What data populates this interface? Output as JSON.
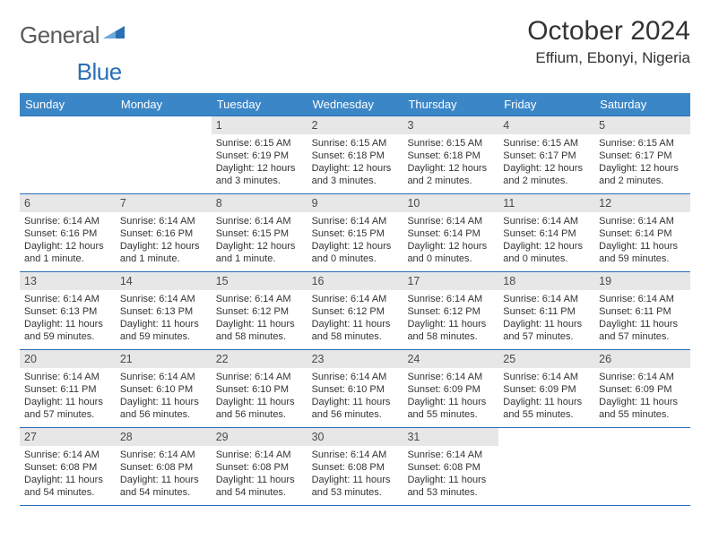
{
  "logo": {
    "part1": "General",
    "part2": "Blue"
  },
  "title": "October 2024",
  "location": "Effium, Ebonyi, Nigeria",
  "colors": {
    "header_bg": "#3b86c7",
    "header_text": "#ffffff",
    "row_border": "#2a6fb5",
    "daynum_bg": "#e7e7e7",
    "text": "#333333",
    "logo_gray": "#5b5b5b",
    "logo_blue": "#2a6fb5",
    "page_bg": "#ffffff"
  },
  "typography": {
    "title_fontsize": 30,
    "location_fontsize": 17,
    "dow_fontsize": 13,
    "daynum_fontsize": 12.5,
    "body_fontsize": 11,
    "logo_fontsize": 26
  },
  "days_of_week": [
    "Sunday",
    "Monday",
    "Tuesday",
    "Wednesday",
    "Thursday",
    "Friday",
    "Saturday"
  ],
  "weeks": [
    [
      null,
      null,
      {
        "n": "1",
        "sunrise": "6:15 AM",
        "sunset": "6:19 PM",
        "daylight": "12 hours and 3 minutes."
      },
      {
        "n": "2",
        "sunrise": "6:15 AM",
        "sunset": "6:18 PM",
        "daylight": "12 hours and 3 minutes."
      },
      {
        "n": "3",
        "sunrise": "6:15 AM",
        "sunset": "6:18 PM",
        "daylight": "12 hours and 2 minutes."
      },
      {
        "n": "4",
        "sunrise": "6:15 AM",
        "sunset": "6:17 PM",
        "daylight": "12 hours and 2 minutes."
      },
      {
        "n": "5",
        "sunrise": "6:15 AM",
        "sunset": "6:17 PM",
        "daylight": "12 hours and 2 minutes."
      }
    ],
    [
      {
        "n": "6",
        "sunrise": "6:14 AM",
        "sunset": "6:16 PM",
        "daylight": "12 hours and 1 minute."
      },
      {
        "n": "7",
        "sunrise": "6:14 AM",
        "sunset": "6:16 PM",
        "daylight": "12 hours and 1 minute."
      },
      {
        "n": "8",
        "sunrise": "6:14 AM",
        "sunset": "6:15 PM",
        "daylight": "12 hours and 1 minute."
      },
      {
        "n": "9",
        "sunrise": "6:14 AM",
        "sunset": "6:15 PM",
        "daylight": "12 hours and 0 minutes."
      },
      {
        "n": "10",
        "sunrise": "6:14 AM",
        "sunset": "6:14 PM",
        "daylight": "12 hours and 0 minutes."
      },
      {
        "n": "11",
        "sunrise": "6:14 AM",
        "sunset": "6:14 PM",
        "daylight": "12 hours and 0 minutes."
      },
      {
        "n": "12",
        "sunrise": "6:14 AM",
        "sunset": "6:14 PM",
        "daylight": "11 hours and 59 minutes."
      }
    ],
    [
      {
        "n": "13",
        "sunrise": "6:14 AM",
        "sunset": "6:13 PM",
        "daylight": "11 hours and 59 minutes."
      },
      {
        "n": "14",
        "sunrise": "6:14 AM",
        "sunset": "6:13 PM",
        "daylight": "11 hours and 59 minutes."
      },
      {
        "n": "15",
        "sunrise": "6:14 AM",
        "sunset": "6:12 PM",
        "daylight": "11 hours and 58 minutes."
      },
      {
        "n": "16",
        "sunrise": "6:14 AM",
        "sunset": "6:12 PM",
        "daylight": "11 hours and 58 minutes."
      },
      {
        "n": "17",
        "sunrise": "6:14 AM",
        "sunset": "6:12 PM",
        "daylight": "11 hours and 58 minutes."
      },
      {
        "n": "18",
        "sunrise": "6:14 AM",
        "sunset": "6:11 PM",
        "daylight": "11 hours and 57 minutes."
      },
      {
        "n": "19",
        "sunrise": "6:14 AM",
        "sunset": "6:11 PM",
        "daylight": "11 hours and 57 minutes."
      }
    ],
    [
      {
        "n": "20",
        "sunrise": "6:14 AM",
        "sunset": "6:11 PM",
        "daylight": "11 hours and 57 minutes."
      },
      {
        "n": "21",
        "sunrise": "6:14 AM",
        "sunset": "6:10 PM",
        "daylight": "11 hours and 56 minutes."
      },
      {
        "n": "22",
        "sunrise": "6:14 AM",
        "sunset": "6:10 PM",
        "daylight": "11 hours and 56 minutes."
      },
      {
        "n": "23",
        "sunrise": "6:14 AM",
        "sunset": "6:10 PM",
        "daylight": "11 hours and 56 minutes."
      },
      {
        "n": "24",
        "sunrise": "6:14 AM",
        "sunset": "6:09 PM",
        "daylight": "11 hours and 55 minutes."
      },
      {
        "n": "25",
        "sunrise": "6:14 AM",
        "sunset": "6:09 PM",
        "daylight": "11 hours and 55 minutes."
      },
      {
        "n": "26",
        "sunrise": "6:14 AM",
        "sunset": "6:09 PM",
        "daylight": "11 hours and 55 minutes."
      }
    ],
    [
      {
        "n": "27",
        "sunrise": "6:14 AM",
        "sunset": "6:08 PM",
        "daylight": "11 hours and 54 minutes."
      },
      {
        "n": "28",
        "sunrise": "6:14 AM",
        "sunset": "6:08 PM",
        "daylight": "11 hours and 54 minutes."
      },
      {
        "n": "29",
        "sunrise": "6:14 AM",
        "sunset": "6:08 PM",
        "daylight": "11 hours and 54 minutes."
      },
      {
        "n": "30",
        "sunrise": "6:14 AM",
        "sunset": "6:08 PM",
        "daylight": "11 hours and 53 minutes."
      },
      {
        "n": "31",
        "sunrise": "6:14 AM",
        "sunset": "6:08 PM",
        "daylight": "11 hours and 53 minutes."
      },
      null,
      null
    ]
  ],
  "labels": {
    "sunrise": "Sunrise:",
    "sunset": "Sunset:",
    "daylight": "Daylight:"
  }
}
